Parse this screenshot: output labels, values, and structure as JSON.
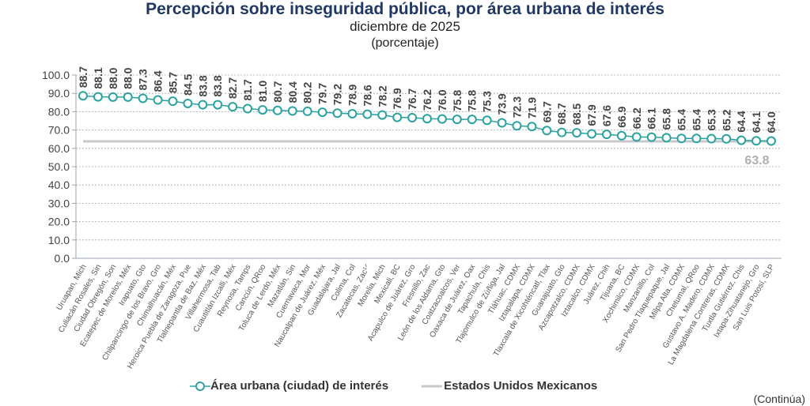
{
  "title": "Percepción sobre inseguridad pública, por área urbana de interés",
  "subtitle": "diciembre de 2025",
  "unit": "(porcentaje)",
  "footer_note": "(Continúa)",
  "colors": {
    "series": "#2aa3a0",
    "reference": "#c8c8c8",
    "title": "#1f3864",
    "reference_label": "#b0b0b0"
  },
  "chart_data": {
    "type": "line",
    "title": "Percepción sobre inseguridad pública, por área urbana de interés",
    "xlabel": "",
    "ylabel": "",
    "ylim": [
      0,
      100
    ],
    "yticks": [
      "0.0",
      "10.0",
      "20.0",
      "30.0",
      "40.0",
      "50.0",
      "60.0",
      "70.0",
      "80.0",
      "90.0",
      "100.0"
    ],
    "grid": true,
    "legend_position": "bottom",
    "categories": [
      "Uruapan, Mich",
      "Culiacán Rosales, Sin",
      "Ciudad Obregón, Son",
      "Ecatepec de Morelos, Méx",
      "Irapuato, Gto",
      "Chilpancingo de los Bravo, Gro",
      "Chimalhuacán, Méx",
      "Heroica Puebla de Zaragoza, Pue",
      "Tlalnepantla de Baz, Méx",
      "Villahermosa, Tab",
      "Cuautitlán Izcalli, Méx",
      "Reynosa, Tamps",
      "Cancún, QRoo",
      "Toluca de Lerdo, Méx",
      "Mazatlán, Sin",
      "Cuernavaca, Mor",
      "Naucalpan de Juárez, Méx",
      "Guadalajara, Jal",
      "Colima, Col",
      "Zacatecas, Zac¹ᐟ",
      "Morelia, Mich",
      "Mexicali, BC",
      "Acapulco de Juárez, Gro",
      "Fresnillo, Zac",
      "León de los Aldama, Gto",
      "Coatzacoalcos, Ver",
      "Oaxaca de Juárez, Oax",
      "Tapachula, Chis",
      "Tlajomulco de Zúñiga, Jal",
      "Tláhuac, CDMX",
      "Iztapalapa, CDMX",
      "Tlaxcala de Xicohténcatl, Tlax",
      "Guanajuato, Gto",
      "Azcapotzalco, CDMX",
      "Iztacalco, CDMX",
      "Juárez, Chih",
      "Tijuana, BC",
      "Xochimilco, CDMX",
      "Manzanillo, Col",
      "San Pedro Tlaquepaque, Jal",
      "Milpa Alta, CDMX",
      "Chetumal, QRoo",
      "Gustavo A. Madero, CDMX",
      "La Magdalena Contreras, CDMX",
      "Tuxtla Gutiérrez, Chis",
      "Ixtapa-Zihuatanejo, Gro",
      "San Luis Potosí, SLP"
    ],
    "series": [
      {
        "name": "Área urbana (ciudad) de interés",
        "values": [
          88.7,
          88.1,
          88.0,
          88.0,
          87.3,
          86.4,
          85.7,
          84.5,
          83.8,
          83.8,
          82.7,
          81.7,
          81.0,
          80.7,
          80.4,
          80.2,
          79.7,
          79.2,
          78.9,
          78.6,
          78.2,
          76.9,
          76.7,
          76.2,
          76.0,
          75.8,
          75.8,
          75.3,
          73.9,
          72.3,
          71.9,
          69.7,
          68.7,
          68.5,
          67.9,
          67.6,
          66.9,
          66.2,
          66.1,
          65.8,
          65.4,
          65.4,
          65.3,
          65.2,
          64.4,
          64.1,
          64.0
        ]
      },
      {
        "name": "Estados Unidos Mexicanos",
        "value": 63.8,
        "label": "63.8"
      }
    ]
  }
}
